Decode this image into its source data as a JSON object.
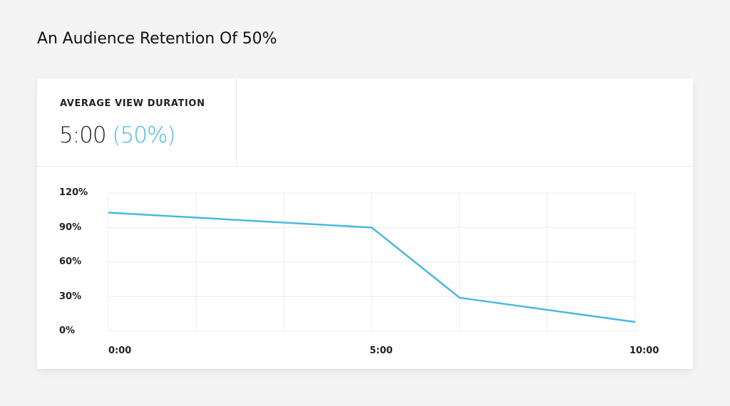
{
  "page": {
    "title": "An Audience Retention Of 50%"
  },
  "metric": {
    "label": "AVERAGE VIEW DURATION",
    "value": "5:00",
    "percent": "(50%)"
  },
  "colors": {
    "accent": "#4ab8e0",
    "background": "#f4f4f4",
    "card": "#ffffff",
    "grid": "#ececec",
    "text": "#222222"
  },
  "chart_data": {
    "type": "line",
    "title": "",
    "xlabel": "",
    "ylabel": "",
    "x_tick_labels": [
      "0:00",
      "5:00",
      "10:00"
    ],
    "y_tick_labels": [
      "120%",
      "90%",
      "60%",
      "30%",
      "0%"
    ],
    "ylim": [
      0,
      120
    ],
    "xlim_minutes": [
      0,
      10
    ],
    "grid": true,
    "legend": "none",
    "series": [
      {
        "name": "Audience retention",
        "color": "#4ab8e0",
        "x_minutes": [
          0,
          5,
          6.67,
          10
        ],
        "values": [
          103,
          90,
          29,
          8
        ]
      }
    ]
  }
}
